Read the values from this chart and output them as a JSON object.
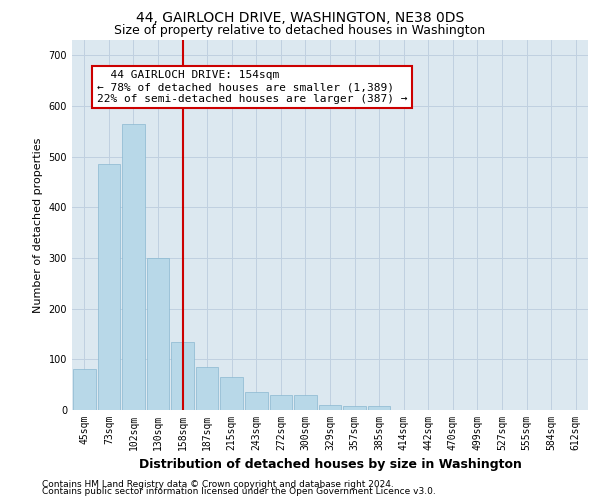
{
  "title": "44, GAIRLOCH DRIVE, WASHINGTON, NE38 0DS",
  "subtitle": "Size of property relative to detached houses in Washington",
  "xlabel": "Distribution of detached houses by size in Washington",
  "ylabel": "Number of detached properties",
  "footnote1": "Contains HM Land Registry data © Crown copyright and database right 2024.",
  "footnote2": "Contains public sector information licensed under the Open Government Licence v3.0.",
  "annotation_line1": "  44 GAIRLOCH DRIVE: 154sqm",
  "annotation_line2": "← 78% of detached houses are smaller (1,389)",
  "annotation_line3": "22% of semi-detached houses are larger (387) →",
  "bar_labels": [
    "45sqm",
    "73sqm",
    "102sqm",
    "130sqm",
    "158sqm",
    "187sqm",
    "215sqm",
    "243sqm",
    "272sqm",
    "300sqm",
    "329sqm",
    "357sqm",
    "385sqm",
    "414sqm",
    "442sqm",
    "470sqm",
    "499sqm",
    "527sqm",
    "555sqm",
    "584sqm",
    "612sqm"
  ],
  "bar_values": [
    80,
    485,
    565,
    300,
    135,
    85,
    65,
    35,
    30,
    30,
    10,
    8,
    8,
    0,
    0,
    0,
    0,
    0,
    0,
    0,
    0
  ],
  "bar_color": "#b8d8e8",
  "bar_edgecolor": "#8ab8d0",
  "redline_x": 4,
  "redline_color": "#cc0000",
  "ylim": [
    0,
    730
  ],
  "yticks": [
    0,
    100,
    200,
    300,
    400,
    500,
    600,
    700
  ],
  "grid_color": "#c0d0e0",
  "bg_color": "#dce8f0",
  "annotation_box_edgecolor": "#cc0000",
  "annotation_box_facecolor": "#ffffff",
  "title_fontsize": 10,
  "subtitle_fontsize": 9,
  "xlabel_fontsize": 9,
  "ylabel_fontsize": 8,
  "tick_fontsize": 7,
  "annotation_fontsize": 8,
  "footnote_fontsize": 6.5
}
